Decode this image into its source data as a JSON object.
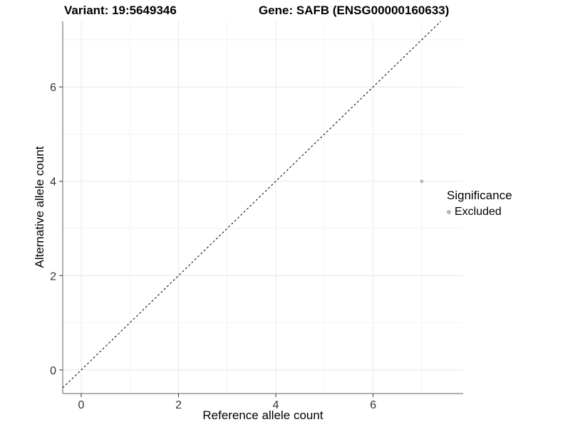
{
  "chart_data": {
    "type": "scatter",
    "variant_title": "Variant: 19:5649346",
    "gene_title": "Gene: SAFB (ENSG00000160633)",
    "xlabel": "Reference allele count",
    "ylabel": "Alternative allele count",
    "x_ticks": [
      0,
      2,
      4,
      6
    ],
    "y_ticks": [
      0,
      2,
      4,
      6
    ],
    "x_minor": [
      1,
      3,
      5,
      7
    ],
    "y_minor": [
      1,
      3,
      5,
      7
    ],
    "xlim": [
      -0.38,
      7.85
    ],
    "ylim": [
      -0.5,
      7.39
    ],
    "grid": true,
    "legend_position": "right",
    "points": [
      {
        "x": 7,
        "y": 4,
        "series": "Excluded"
      }
    ],
    "identity_line": {
      "style": "dashed",
      "slope": 1,
      "intercept": 0
    },
    "legend": {
      "title": "Significance",
      "items": [
        {
          "label": "Excluded",
          "color": "#b8b8b8"
        }
      ]
    },
    "colors": {
      "point": "#b8b8b8",
      "grid_major": "#e8e8e8",
      "grid_minor": "#f2f2f2",
      "axis_line": "#606060",
      "tick": "#333333",
      "tick_label": "#333333",
      "text": "#000000",
      "dashed_line": "#000000",
      "background": "#ffffff"
    }
  }
}
